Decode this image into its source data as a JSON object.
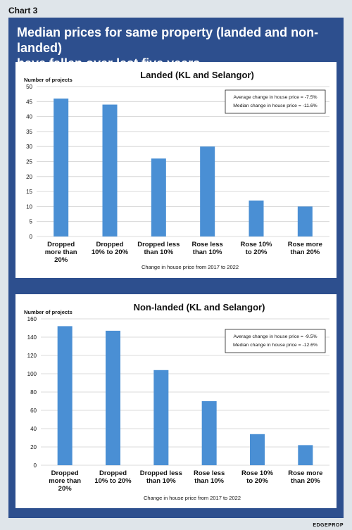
{
  "header": {
    "chart_tag": "Chart 3",
    "headline_line1": "Median prices for same property (landed and non-landed)",
    "headline_line2": "have fallen over last five years"
  },
  "brand": "EDGEPROP",
  "colors": {
    "bar": "#4a8fd4",
    "panel": "#2d4f8e",
    "grid": "#cfcfcf",
    "text": "#111111"
  },
  "chart_data": [
    {
      "type": "bar",
      "title": "Landed (KL and Selangor)",
      "ylabel": "Number of projects",
      "xlabel": "Change in house price from 2017 to 2022",
      "categories": [
        [
          "Dropped",
          "more than",
          "20%"
        ],
        [
          "Dropped",
          "10% to 20%"
        ],
        [
          "Dropped less",
          "than 10%"
        ],
        [
          "Rose less",
          "than 10%"
        ],
        [
          "Rose 10%",
          "to 20%"
        ],
        [
          "Rose more",
          "than 20%"
        ]
      ],
      "values": [
        46,
        44,
        26,
        30,
        12,
        10
      ],
      "ylim": [
        0,
        50
      ],
      "yticks": [
        0,
        5,
        10,
        15,
        20,
        25,
        30,
        35,
        40,
        45,
        50
      ],
      "grid": true,
      "annotation": [
        "Average change in house price = -7.5%",
        "Median change in house price = -11.6%"
      ]
    },
    {
      "type": "bar",
      "title": "Non-landed (KL and Selangor)",
      "ylabel": "Number of projects",
      "xlabel": "Change in house price from 2017 to 2022",
      "categories": [
        [
          "Dropped",
          "more than",
          "20%"
        ],
        [
          "Dropped",
          "10% to 20%"
        ],
        [
          "Dropped less",
          "than 10%"
        ],
        [
          "Rose less",
          "than 10%"
        ],
        [
          "Rose 10%",
          "to 20%"
        ],
        [
          "Rose more",
          "than 20%"
        ]
      ],
      "values": [
        152,
        147,
        104,
        70,
        34,
        22
      ],
      "ylim": [
        0,
        160
      ],
      "yticks": [
        0,
        20,
        40,
        60,
        80,
        100,
        120,
        140,
        160
      ],
      "grid": true,
      "annotation": [
        "Average change in house price = -9.5%",
        "Median change in house price = -12.6%"
      ]
    }
  ]
}
